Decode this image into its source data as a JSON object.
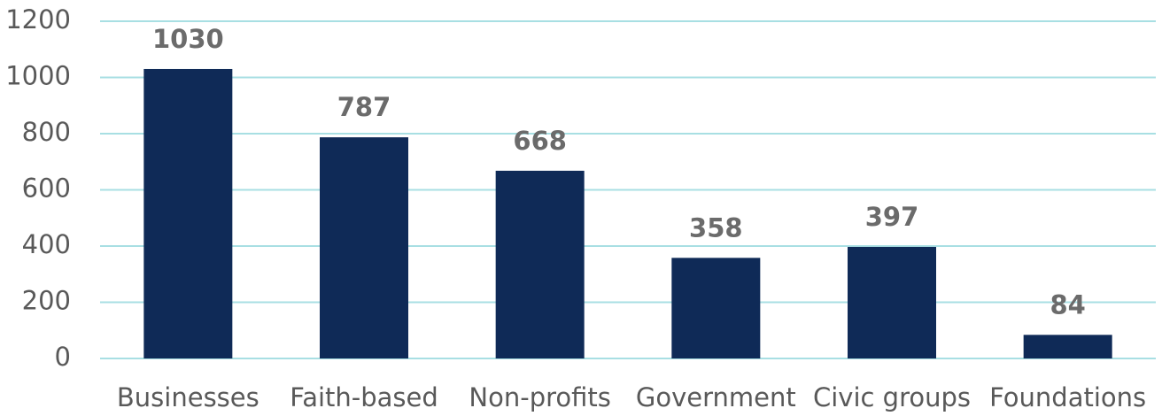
{
  "chart_data": {
    "type": "bar",
    "categories": [
      "Businesses",
      "Faith-based",
      "Non-profits",
      "Government",
      "Civic groups",
      "Foundations"
    ],
    "values": [
      1030,
      787,
      668,
      358,
      397,
      84
    ],
    "color": "#0f2a57",
    "ylim": [
      0,
      1200
    ],
    "yticks": [
      0,
      200,
      400,
      600,
      800,
      1000,
      1200
    ],
    "grid": true
  }
}
